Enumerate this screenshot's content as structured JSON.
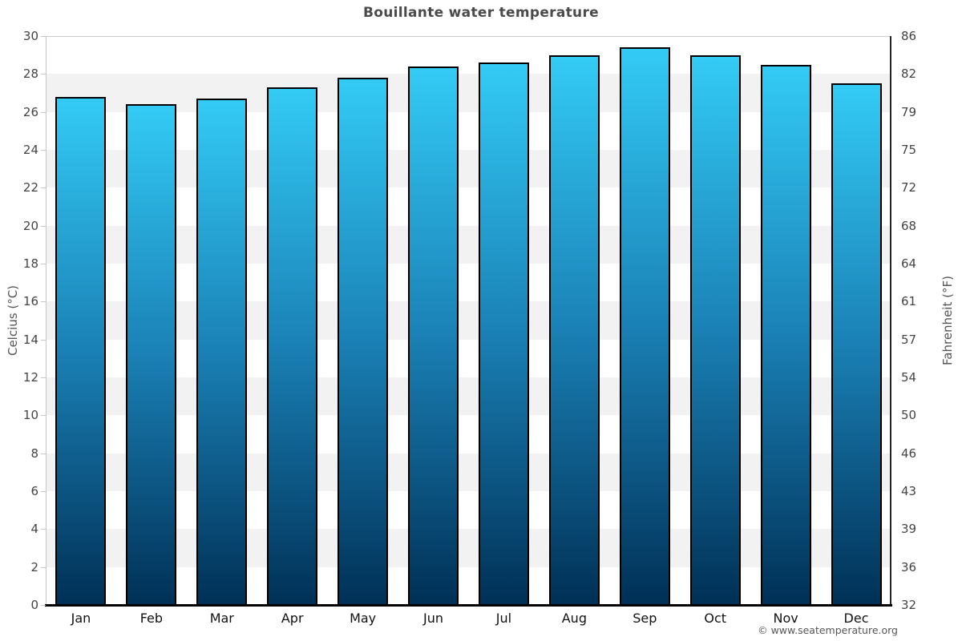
{
  "title": "Bouillante water temperature",
  "footer": {
    "credit": "© www.seatemperature.org"
  },
  "colors": {
    "bar_gradient_top": "#33cbf5",
    "bar_gradient_mid": "#1a80b5",
    "bar_gradient_bottom": "#003056",
    "bar_border": "#000000",
    "band_gray": "#f2f2f2",
    "band_white": "#ffffff",
    "left_axis_line": "#c6c6c6",
    "right_axis_line": "#222222",
    "bottom_axis_line": "#000000",
    "tick_label": "#444444",
    "month_label": "#111111",
    "axis_title": "#555555",
    "title_color": "#4a4a4a"
  },
  "chart_data": {
    "type": "bar",
    "title": "Bouillante water temperature",
    "categories": [
      "Jan",
      "Feb",
      "Mar",
      "Apr",
      "May",
      "Jun",
      "Jul",
      "Aug",
      "Sep",
      "Oct",
      "Nov",
      "Dec"
    ],
    "values": [
      26.8,
      26.4,
      26.7,
      27.3,
      27.8,
      28.4,
      28.6,
      29.0,
      29.4,
      29.0,
      28.5,
      27.5
    ],
    "units": "°C",
    "ylabel_left": "Celcius (°C)",
    "ylabel_right": "Fahrenheit (°F)",
    "xlabel": "",
    "ylim": [
      0,
      30
    ],
    "yticks_celsius": [
      0,
      2,
      4,
      6,
      8,
      10,
      12,
      14,
      16,
      18,
      20,
      22,
      24,
      26,
      28,
      30
    ],
    "yticks_fahrenheit": [
      32,
      36,
      39,
      43,
      46,
      50,
      54,
      57,
      61,
      64,
      68,
      72,
      75,
      79,
      82,
      86
    ],
    "grid": "alternating horizontal bands, gray/white, 2°C per band",
    "legend": "none",
    "bar_style": "vertical gradient cyan to dark navy, black outline"
  }
}
